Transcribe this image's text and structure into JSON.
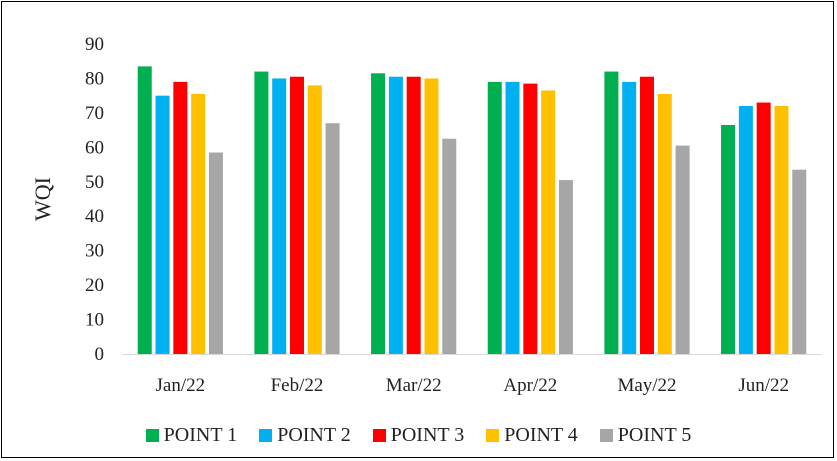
{
  "chart_data": {
    "type": "bar",
    "title": "",
    "xlabel": "",
    "ylabel": "WQI",
    "ylim": [
      0,
      90
    ],
    "yticks": [
      0,
      10,
      20,
      30,
      40,
      50,
      60,
      70,
      80,
      90
    ],
    "grid": false,
    "legend_position": "bottom",
    "categories": [
      "Jan/22",
      "Feb/22",
      "Mar/22",
      "Apr/22",
      "May/22",
      "Jun/22"
    ],
    "series": [
      {
        "name": "POINT 1",
        "color": "#00b050",
        "values": [
          83.5,
          82.0,
          81.5,
          79.0,
          82.0,
          66.5
        ]
      },
      {
        "name": "POINT 2",
        "color": "#00b0f0",
        "values": [
          75.0,
          80.0,
          80.5,
          79.0,
          79.0,
          72.0
        ]
      },
      {
        "name": "POINT 3",
        "color": "#ff0000",
        "values": [
          79.0,
          80.5,
          80.5,
          78.5,
          80.5,
          73.0
        ]
      },
      {
        "name": "POINT 4",
        "color": "#ffc000",
        "values": [
          75.5,
          78.0,
          80.0,
          76.5,
          75.5,
          72.0
        ]
      },
      {
        "name": "POINT 5",
        "color": "#a6a6a6",
        "values": [
          58.5,
          67.0,
          62.5,
          50.5,
          60.5,
          53.5
        ]
      }
    ]
  }
}
